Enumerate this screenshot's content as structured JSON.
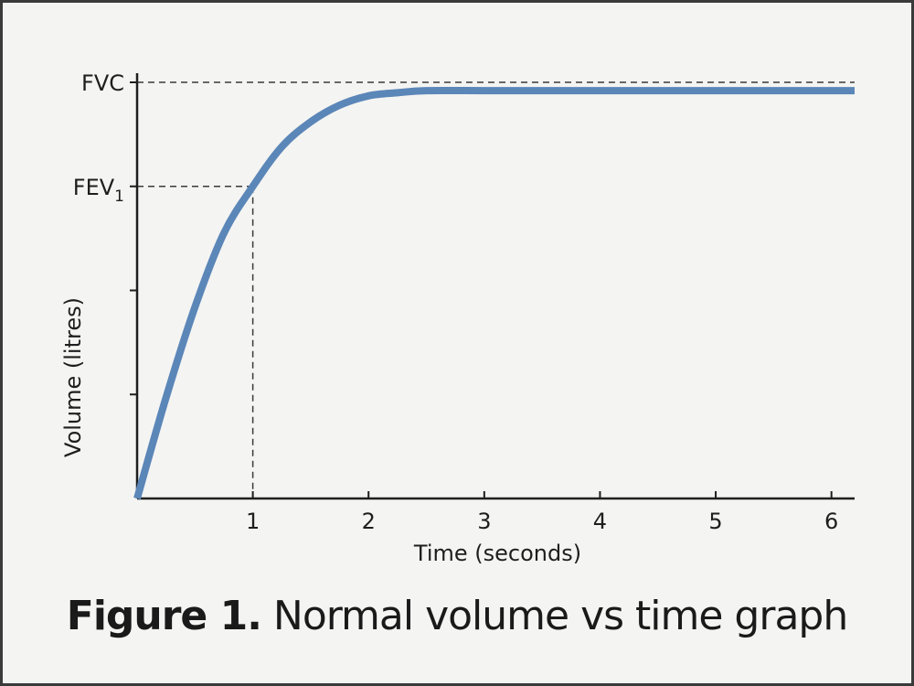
{
  "chart_data": {
    "type": "line",
    "xlabel": "Time (seconds)",
    "ylabel": "Volume (litres)",
    "xlim": [
      0,
      6.2
    ],
    "ylim": [
      0,
      4
    ],
    "x_ticks": [
      1,
      2,
      3,
      4,
      5,
      6
    ],
    "x_tick_labels": [
      "1",
      "2",
      "3",
      "4",
      "5",
      "6"
    ],
    "y_ticks": [
      1,
      2,
      3,
      4
    ],
    "y_reference_labels": [
      {
        "value": 4.0,
        "label": "FVC"
      },
      {
        "value": 3.0,
        "label": "FEV",
        "subscript": "1"
      }
    ],
    "series": [
      {
        "x": [
          0,
          0.25,
          0.5,
          0.75,
          1.0,
          1.25,
          1.5,
          1.75,
          2.0,
          2.25,
          2.5,
          3.0,
          4.0,
          5.0,
          6.2
        ],
        "y": [
          0,
          0.97,
          1.84,
          2.55,
          3.0,
          3.38,
          3.62,
          3.78,
          3.87,
          3.9,
          3.92,
          3.92,
          3.92,
          3.92,
          3.92
        ],
        "color": "#5b86b8"
      }
    ],
    "reference_lines": {
      "fvc_y": 4.0,
      "fev1_y": 3.0,
      "fev1_x": 1.0
    },
    "grid": false,
    "legend": "none"
  },
  "caption": {
    "label": "Figure 1.",
    "text": " Normal volume vs time graph"
  }
}
